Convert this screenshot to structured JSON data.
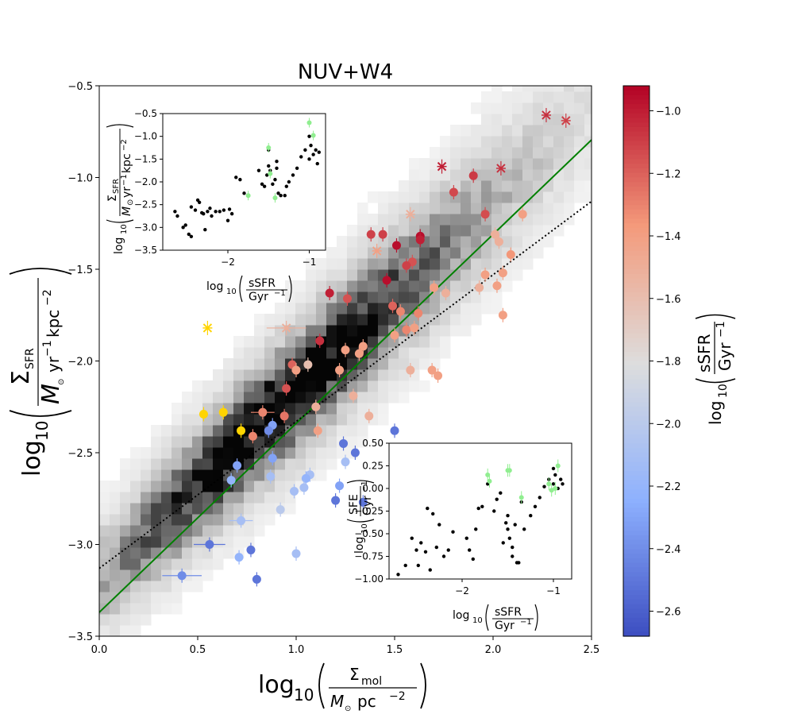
{
  "chart_data": [
    {
      "type": "scatter",
      "title": "NUV+W4",
      "xlabel": "log10(Σmol / M⊙ pc−2)",
      "ylabel": "log10(ΣSFR / M⊙ yr−1 kpc−2)",
      "xlim": [
        0.0,
        2.5
      ],
      "ylim": [
        -3.5,
        -0.5
      ],
      "x_ticks": [
        "0.0",
        "0.5",
        "1.0",
        "1.5",
        "2.0",
        "2.5"
      ],
      "y_ticks": [
        "−3.5",
        "−3.0",
        "−2.5",
        "−2.0",
        "−1.5",
        "−1.0",
        "−0.5"
      ],
      "axis_label_parts": {
        "log": "log",
        "sub10": "10",
        "x_num": "Σ",
        "x_num_sub": "mol",
        "x_den": "M",
        "x_den_sun": "⊙",
        "x_den_unit": "pc",
        "x_den_exp": "−2",
        "y_num": "Σ",
        "y_num_sub": "SFR",
        "y_den": "M",
        "y_den_sun": "⊙",
        "y_den_unit1": "yr",
        "y_den_exp1": "−1",
        "y_den_unit2": "kpc",
        "y_den_exp2": "−2"
      },
      "fit_lines": [
        {
          "name": "green-fit",
          "color": "#008000",
          "style": "solid",
          "intercept": -3.37,
          "slope": 1.03
        },
        {
          "name": "dotted-fit",
          "color": "#000000",
          "style": "dotted",
          "intercept": -3.13,
          "slope": 0.8
        }
      ],
      "density_peak": {
        "x": 0.9,
        "y": -2.25
      },
      "points": [
        {
          "x": 2.27,
          "y": -0.66,
          "c": -1.05,
          "marker": "x"
        },
        {
          "x": 2.37,
          "y": -0.69,
          "c": -1.1,
          "marker": "x"
        },
        {
          "x": 1.74,
          "y": -0.94,
          "c": -1.0,
          "marker": "x"
        },
        {
          "x": 2.04,
          "y": -0.95,
          "c": -1.05,
          "marker": "x"
        },
        {
          "x": 1.9,
          "y": -0.99,
          "c": -1.08,
          "marker": "o"
        },
        {
          "x": 1.8,
          "y": -1.08,
          "c": -1.12,
          "marker": "o"
        },
        {
          "x": 1.96,
          "y": -1.2,
          "c": -1.13,
          "marker": "o"
        },
        {
          "x": 2.15,
          "y": -1.2,
          "c": -1.4,
          "marker": "o"
        },
        {
          "x": 1.58,
          "y": -1.2,
          "c": -1.5,
          "marker": "x"
        },
        {
          "x": 1.38,
          "y": -1.31,
          "c": -1.1,
          "marker": "o"
        },
        {
          "x": 1.44,
          "y": -1.31,
          "c": -1.1,
          "marker": "o"
        },
        {
          "x": 1.51,
          "y": -1.37,
          "c": -0.95,
          "marker": "o"
        },
        {
          "x": 1.63,
          "y": -1.32,
          "c": -0.95,
          "marker": "o"
        },
        {
          "x": 1.63,
          "y": -1.34,
          "c": -1.0,
          "marker": "o"
        },
        {
          "x": 1.41,
          "y": -1.4,
          "c": -1.4,
          "marker": "x"
        },
        {
          "x": 2.01,
          "y": -1.31,
          "c": -1.5,
          "marker": "o"
        },
        {
          "x": 2.03,
          "y": -1.35,
          "c": -1.5,
          "marker": "o"
        },
        {
          "x": 2.09,
          "y": -1.42,
          "c": -1.35,
          "marker": "o"
        },
        {
          "x": 1.59,
          "y": -1.46,
          "c": -1.15,
          "marker": "o"
        },
        {
          "x": 1.56,
          "y": -1.48,
          "c": -1.1,
          "marker": "o"
        },
        {
          "x": 1.46,
          "y": -1.56,
          "c": -0.95,
          "marker": "o"
        },
        {
          "x": 1.96,
          "y": -1.53,
          "c": -1.4,
          "marker": "o"
        },
        {
          "x": 2.05,
          "y": -1.52,
          "c": -1.4,
          "marker": "o"
        },
        {
          "x": 2.02,
          "y": -1.59,
          "c": -1.4,
          "marker": "o"
        },
        {
          "x": 1.93,
          "y": -1.6,
          "c": -1.5,
          "marker": "o"
        },
        {
          "x": 1.7,
          "y": -1.6,
          "c": -1.4,
          "marker": "o"
        },
        {
          "x": 1.76,
          "y": -1.63,
          "c": -1.5,
          "marker": "o"
        },
        {
          "x": 1.17,
          "y": -1.63,
          "c": -1.0,
          "marker": "o"
        },
        {
          "x": 1.26,
          "y": -1.66,
          "c": -1.15,
          "marker": "o"
        },
        {
          "x": 1.49,
          "y": -1.7,
          "c": -1.2,
          "marker": "o"
        },
        {
          "x": 1.53,
          "y": -1.73,
          "c": -1.3,
          "marker": "o"
        },
        {
          "x": 1.62,
          "y": -1.74,
          "c": -1.3,
          "marker": "o"
        },
        {
          "x": 2.05,
          "y": -1.75,
          "c": -1.4,
          "marker": "o"
        },
        {
          "x": 0.55,
          "y": -1.82,
          "c": -1.2,
          "marker": "x",
          "special_color": "#ffd400"
        },
        {
          "x": 0.95,
          "y": -1.82,
          "c": -1.5,
          "marker": "x",
          "xerr": 0.1
        },
        {
          "x": 1.56,
          "y": -1.83,
          "c": -1.3,
          "marker": "o"
        },
        {
          "x": 1.6,
          "y": -1.82,
          "c": -1.4,
          "marker": "o"
        },
        {
          "x": 1.5,
          "y": -1.86,
          "c": -1.4,
          "marker": "o"
        },
        {
          "x": 1.12,
          "y": -1.89,
          "c": -1.05,
          "marker": "o"
        },
        {
          "x": 1.34,
          "y": -1.92,
          "c": -1.4,
          "marker": "o"
        },
        {
          "x": 1.25,
          "y": -1.94,
          "c": -1.4,
          "marker": "o"
        },
        {
          "x": 1.32,
          "y": -1.96,
          "c": -1.4,
          "marker": "o"
        },
        {
          "x": 0.98,
          "y": -2.02,
          "c": -1.2,
          "marker": "o"
        },
        {
          "x": 1.0,
          "y": -2.05,
          "c": -1.4,
          "marker": "o"
        },
        {
          "x": 1.06,
          "y": -2.02,
          "c": -1.6,
          "marker": "o"
        },
        {
          "x": 1.22,
          "y": -2.05,
          "c": -1.4,
          "marker": "o"
        },
        {
          "x": 1.58,
          "y": -2.05,
          "c": -1.5,
          "marker": "o"
        },
        {
          "x": 1.69,
          "y": -2.05,
          "c": -1.4,
          "marker": "o"
        },
        {
          "x": 1.72,
          "y": -2.08,
          "c": -1.4,
          "marker": "o"
        },
        {
          "x": 0.95,
          "y": -2.15,
          "c": -1.15,
          "marker": "o"
        },
        {
          "x": 1.29,
          "y": -2.19,
          "c": -1.5,
          "marker": "o"
        },
        {
          "x": 1.1,
          "y": -2.25,
          "c": -1.5,
          "marker": "o"
        },
        {
          "x": 0.83,
          "y": -2.28,
          "c": -1.3,
          "marker": "o",
          "xerr": 0.06
        },
        {
          "x": 0.94,
          "y": -2.3,
          "c": -1.25,
          "marker": "o"
        },
        {
          "x": 1.37,
          "y": -2.3,
          "c": -1.5,
          "marker": "o"
        },
        {
          "x": 0.53,
          "y": -2.29,
          "c": -1.2,
          "marker": "o",
          "special_color": "#ffd400"
        },
        {
          "x": 0.63,
          "y": -2.28,
          "c": -1.2,
          "marker": "o",
          "special_color": "#ffd400"
        },
        {
          "x": 0.72,
          "y": -2.38,
          "c": -1.2,
          "marker": "o",
          "special_color": "#ffd400"
        },
        {
          "x": 0.88,
          "y": -2.35,
          "c": -2.3,
          "marker": "o"
        },
        {
          "x": 0.86,
          "y": -2.38,
          "c": -2.4,
          "marker": "o"
        },
        {
          "x": 0.78,
          "y": -2.41,
          "c": -1.3,
          "marker": "o"
        },
        {
          "x": 1.11,
          "y": -2.38,
          "c": -1.4,
          "marker": "o"
        },
        {
          "x": 1.5,
          "y": -2.38,
          "c": -2.5,
          "marker": "o"
        },
        {
          "x": 1.24,
          "y": -2.45,
          "c": -2.5,
          "marker": "o"
        },
        {
          "x": 1.3,
          "y": -2.5,
          "c": -2.5,
          "marker": "o"
        },
        {
          "x": 0.88,
          "y": -2.53,
          "c": -2.3,
          "marker": "o"
        },
        {
          "x": 1.25,
          "y": -2.55,
          "c": -2.1,
          "marker": "o"
        },
        {
          "x": 0.7,
          "y": -2.57,
          "c": -2.3,
          "marker": "o"
        },
        {
          "x": 0.87,
          "y": -2.63,
          "c": -2.1,
          "marker": "o"
        },
        {
          "x": 0.67,
          "y": -2.65,
          "c": -2.2,
          "marker": "o"
        },
        {
          "x": 1.07,
          "y": -2.62,
          "c": -2.1,
          "marker": "o"
        },
        {
          "x": 1.05,
          "y": -2.64,
          "c": -2.2,
          "marker": "o"
        },
        {
          "x": 1.22,
          "y": -2.68,
          "c": -2.3,
          "marker": "o"
        },
        {
          "x": 1.04,
          "y": -2.69,
          "c": -2.1,
          "marker": "o"
        },
        {
          "x": 0.99,
          "y": -2.71,
          "c": -2.1,
          "marker": "o"
        },
        {
          "x": 1.2,
          "y": -2.76,
          "c": -2.5,
          "marker": "o"
        },
        {
          "x": 1.34,
          "y": -2.77,
          "c": -2.5,
          "marker": "o"
        },
        {
          "x": 0.92,
          "y": -2.81,
          "c": -2.0,
          "marker": "o"
        },
        {
          "x": 0.72,
          "y": -2.87,
          "c": -2.1,
          "marker": "o",
          "xerr": 0.06
        },
        {
          "x": 0.56,
          "y": -3.0,
          "c": -2.5,
          "marker": "o",
          "xerr": 0.08
        },
        {
          "x": 0.77,
          "y": -3.03,
          "c": -2.5,
          "marker": "o"
        },
        {
          "x": 1.0,
          "y": -3.05,
          "c": -2.1,
          "marker": "o"
        },
        {
          "x": 0.71,
          "y": -3.07,
          "c": -2.2,
          "marker": "o"
        },
        {
          "x": 0.42,
          "y": -3.17,
          "c": -2.4,
          "marker": "o",
          "xerr": 0.1
        },
        {
          "x": 0.8,
          "y": -3.19,
          "c": -2.5,
          "marker": "o"
        }
      ]
    },
    {
      "type": "scatter",
      "name": "inset-top",
      "xlabel": "log10(sSFR / Gyr−1)",
      "ylabel": "log10(ΣSFR / M⊙ yr−1 kpc−2)",
      "xlim": [
        -2.8,
        -0.8
      ],
      "ylim": [
        -3.5,
        -0.5
      ],
      "x_ticks": [
        "−2",
        "−1"
      ],
      "y_ticks": [
        "−3.5",
        "−3.0",
        "−2.5",
        "−2.0",
        "−1.5",
        "−1.0",
        "−0.5"
      ],
      "label_parts": {
        "x_num": "sSFR",
        "x_den": "Gyr",
        "x_den_exp": "−1",
        "y_num": "Σ",
        "y_num_sub": "SFR",
        "y_den": "M",
        "y_den_sun": "⊙",
        "y_den_rest": "yr",
        "y_den_exp1": "−1",
        "y_den_rest2": "kpc",
        "y_den_exp2": "−2"
      },
      "black_points": [
        [
          -2.65,
          -2.65
        ],
        [
          -2.62,
          -2.75
        ],
        [
          -2.55,
          -3.0
        ],
        [
          -2.52,
          -2.95
        ],
        [
          -2.48,
          -3.15
        ],
        [
          -2.45,
          -2.55
        ],
        [
          -2.45,
          -3.2
        ],
        [
          -2.4,
          -2.62
        ],
        [
          -2.37,
          -2.4
        ],
        [
          -2.35,
          -2.45
        ],
        [
          -2.32,
          -2.68
        ],
        [
          -2.3,
          -2.7
        ],
        [
          -2.28,
          -3.05
        ],
        [
          -2.25,
          -2.65
        ],
        [
          -2.22,
          -2.58
        ],
        [
          -2.2,
          -2.75
        ],
        [
          -2.15,
          -2.65
        ],
        [
          -2.1,
          -2.65
        ],
        [
          -2.05,
          -2.62
        ],
        [
          -2.0,
          -2.85
        ],
        [
          -1.98,
          -2.6
        ],
        [
          -1.95,
          -2.7
        ],
        [
          -1.9,
          -1.9
        ],
        [
          -1.85,
          -1.95
        ],
        [
          -1.8,
          -2.25
        ],
        [
          -1.62,
          -1.75
        ],
        [
          -1.58,
          -2.05
        ],
        [
          -1.55,
          -2.1
        ],
        [
          -1.52,
          -1.85
        ],
        [
          -1.5,
          -1.3
        ],
        [
          -1.5,
          -1.65
        ],
        [
          -1.48,
          -1.75
        ],
        [
          -1.45,
          -2.05
        ],
        [
          -1.42,
          -1.95
        ],
        [
          -1.4,
          -1.55
        ],
        [
          -1.4,
          -1.7
        ],
        [
          -1.38,
          -2.25
        ],
        [
          -1.35,
          -2.3
        ],
        [
          -1.3,
          -2.3
        ],
        [
          -1.28,
          -2.1
        ],
        [
          -1.25,
          -2.0
        ],
        [
          -1.2,
          -1.85
        ],
        [
          -1.15,
          -1.7
        ],
        [
          -1.1,
          -1.45
        ],
        [
          -1.05,
          -1.3
        ],
        [
          -1.0,
          -1.0
        ],
        [
          -1.0,
          -1.5
        ],
        [
          -0.98,
          -1.2
        ],
        [
          -0.95,
          -1.4
        ],
        [
          -0.92,
          -1.3
        ],
        [
          -0.9,
          -1.6
        ],
        [
          -0.88,
          -1.35
        ]
      ],
      "green_points": [
        [
          -1.75,
          -2.3
        ],
        [
          -1.5,
          -1.25
        ],
        [
          -1.48,
          -1.82
        ],
        [
          -1.42,
          -2.35
        ],
        [
          -1.0,
          -0.7
        ],
        [
          -0.95,
          -0.98
        ]
      ]
    },
    {
      "type": "scatter",
      "name": "inset-bottom",
      "xlabel": "log10(sSFR / Gyr−1)",
      "ylabel": "log10(SFE / Gyr−1)",
      "xlim": [
        -2.8,
        -0.8
      ],
      "ylim": [
        -1.0,
        0.5
      ],
      "x_ticks": [
        "−2",
        "−1"
      ],
      "y_ticks": [
        "−1.00",
        "−0.75",
        "−0.50",
        "−0.25",
        "0.00",
        "0.25",
        "0.50"
      ],
      "label_parts": {
        "x_num": "sSFR",
        "x_den": "Gyr",
        "x_den_exp": "−1",
        "y_num": "SFE",
        "y_den": "Gyr",
        "y_den_exp": "−1"
      },
      "black_points": [
        [
          -2.7,
          -0.95
        ],
        [
          -2.62,
          -0.85
        ],
        [
          -2.55,
          -0.55
        ],
        [
          -2.5,
          -0.68
        ],
        [
          -2.48,
          -0.85
        ],
        [
          -2.45,
          -0.6
        ],
        [
          -2.4,
          -0.7
        ],
        [
          -2.38,
          -0.22
        ],
        [
          -2.35,
          -0.9
        ],
        [
          -2.32,
          -0.28
        ],
        [
          -2.28,
          -0.65
        ],
        [
          -2.25,
          -0.4
        ],
        [
          -2.2,
          -0.75
        ],
        [
          -2.15,
          -0.68
        ],
        [
          -2.1,
          -0.48
        ],
        [
          -1.95,
          -0.55
        ],
        [
          -1.92,
          -0.68
        ],
        [
          -1.88,
          -0.78
        ],
        [
          -1.85,
          -0.45
        ],
        [
          -1.82,
          -0.22
        ],
        [
          -1.78,
          -0.2
        ],
        [
          -1.72,
          0.05
        ],
        [
          -1.65,
          -0.25
        ],
        [
          -1.62,
          -0.12
        ],
        [
          -1.58,
          -0.05
        ],
        [
          -1.55,
          -0.6
        ],
        [
          -1.52,
          -0.38
        ],
        [
          -1.5,
          -0.3
        ],
        [
          -1.5,
          -0.45
        ],
        [
          -1.48,
          -0.55
        ],
        [
          -1.45,
          -0.65
        ],
        [
          -1.45,
          -0.75
        ],
        [
          -1.42,
          -0.4
        ],
        [
          -1.4,
          -0.82
        ],
        [
          -1.38,
          -0.82
        ],
        [
          -1.35,
          -0.15
        ],
        [
          -1.32,
          -0.45
        ],
        [
          -1.25,
          -0.3
        ],
        [
          -1.2,
          -0.2
        ],
        [
          -1.15,
          -0.1
        ],
        [
          -1.1,
          0.02
        ],
        [
          -1.05,
          0.1
        ],
        [
          -1.0,
          0.22
        ],
        [
          -1.0,
          0.05
        ],
        [
          -0.98,
          0.15
        ],
        [
          -0.95,
          0.0
        ],
        [
          -0.92,
          0.1
        ],
        [
          -0.9,
          0.05
        ]
      ],
      "green_points": [
        [
          -1.72,
          0.15
        ],
        [
          -1.7,
          0.08
        ],
        [
          -1.5,
          0.2
        ],
        [
          -1.48,
          0.2
        ],
        [
          -1.35,
          -0.1
        ],
        [
          -1.05,
          0.05
        ],
        [
          -1.02,
          -0.02
        ],
        [
          -0.98,
          0.0
        ],
        [
          -0.95,
          0.25
        ]
      ]
    },
    {
      "type": "colorbar",
      "name": "ssfr-colorbar",
      "label": "log10(sSFR / Gyr−1)",
      "label_parts": {
        "num": "sSFR",
        "den": "Gyr",
        "den_exp": "−1"
      },
      "range": [
        -2.68,
        -0.92
      ],
      "colormap": "coolwarm",
      "ticks": [
        {
          "value": -1.0,
          "label": "−1.0"
        },
        {
          "value": -1.2,
          "label": "−1.2"
        },
        {
          "value": -1.4,
          "label": "−1.4"
        },
        {
          "value": -1.6,
          "label": "−1.6"
        },
        {
          "value": -1.8,
          "label": "−1.8"
        },
        {
          "value": -2.0,
          "label": "−2.0"
        },
        {
          "value": -2.2,
          "label": "−2.2"
        },
        {
          "value": -2.4,
          "label": "−2.4"
        },
        {
          "value": -2.6,
          "label": "−2.6"
        }
      ]
    }
  ],
  "colors": {
    "green_marker": "#90ee90",
    "fit_green": "#008000",
    "highlight_yellow": "#ffd400"
  }
}
